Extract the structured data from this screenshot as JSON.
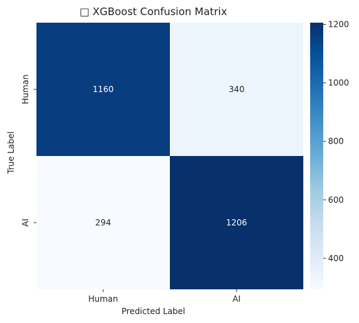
{
  "chart_data": {
    "type": "heatmap",
    "title": "□ XGBoost Confusion Matrix",
    "xlabel": "Predicted Label",
    "ylabel": "True Label",
    "x_categories": [
      "Human",
      "AI"
    ],
    "y_categories": [
      "Human",
      "AI"
    ],
    "values": [
      [
        1160,
        340
      ],
      [
        294,
        1206
      ]
    ],
    "colormap": "Blues",
    "color_range": [
      294,
      1206
    ],
    "colorbar_ticks": [
      400,
      600,
      800,
      1000,
      1200
    ],
    "grid": false,
    "colorbar_position": "right"
  }
}
